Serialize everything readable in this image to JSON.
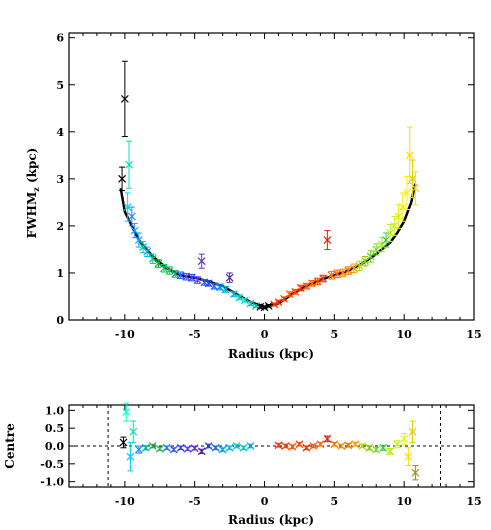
{
  "chart_data": [
    {
      "type": "scatter",
      "xlabel": "Radius (kpc)",
      "ylabel": "FWHM_z (kpc)",
      "ylabel_main": "FWHM",
      "ylabel_sub": "z",
      "ylabel_unit": " (kpc)",
      "xlim": [
        -14,
        15
      ],
      "ylim": [
        0,
        6.1
      ],
      "xticks": [
        "-10",
        "-5",
        "0",
        "5",
        "10",
        "15"
      ],
      "xtick_values": [
        -10,
        -5,
        0,
        5,
        10,
        15
      ],
      "yticks": [
        "0",
        "1",
        "2",
        "3",
        "4",
        "5",
        "6"
      ],
      "ytick_values": [
        0,
        1,
        2,
        3,
        4,
        5,
        6
      ],
      "trend": {
        "x": [
          -10.3,
          -10.0,
          -9.5,
          -9.0,
          -8.0,
          -7.0,
          -6.0,
          -5.0,
          -4.0,
          -3.0,
          -2.0,
          -1.0,
          0.0,
          1.0,
          2.0,
          3.0,
          4.0,
          5.0,
          6.0,
          7.0,
          8.0,
          9.0,
          9.5,
          10.0,
          10.5,
          10.8
        ],
        "y": [
          2.8,
          2.3,
          2.0,
          1.7,
          1.35,
          1.1,
          0.95,
          0.9,
          0.82,
          0.72,
          0.55,
          0.38,
          0.28,
          0.35,
          0.55,
          0.72,
          0.85,
          0.95,
          1.05,
          1.2,
          1.4,
          1.65,
          1.85,
          2.1,
          2.5,
          2.9
        ]
      },
      "points": {
        "x": [
          -10.2,
          -10.0,
          -9.8,
          -9.7,
          -9.5,
          -9.3,
          -9.0,
          -8.7,
          -8.4,
          -8.0,
          -7.6,
          -7.2,
          -6.8,
          -6.4,
          -6.0,
          -5.6,
          -5.2,
          -4.8,
          -4.5,
          -4.3,
          -4.0,
          -3.6,
          -3.2,
          -2.8,
          -2.5,
          -2.2,
          -1.8,
          -1.4,
          -1.0,
          -0.6,
          -0.3,
          0.0,
          0.3,
          0.7,
          1.0,
          1.4,
          1.8,
          2.2,
          2.6,
          3.0,
          3.4,
          3.8,
          4.2,
          4.5,
          4.8,
          5.2,
          5.6,
          6.0,
          6.4,
          6.8,
          7.2,
          7.6,
          8.0,
          8.4,
          8.7,
          9.0,
          9.3,
          9.6,
          9.9,
          10.2,
          10.4,
          10.6,
          10.8
        ],
        "y": [
          3.0,
          4.7,
          2.4,
          3.3,
          2.2,
          1.9,
          1.7,
          1.55,
          1.45,
          1.3,
          1.2,
          1.1,
          1.05,
          0.98,
          0.95,
          0.92,
          0.9,
          0.85,
          1.25,
          0.8,
          0.78,
          0.72,
          0.7,
          0.65,
          0.9,
          0.55,
          0.48,
          0.42,
          0.35,
          0.3,
          0.28,
          0.27,
          0.3,
          0.33,
          0.38,
          0.45,
          0.55,
          0.6,
          0.68,
          0.72,
          0.78,
          0.82,
          0.88,
          1.7,
          0.95,
          0.98,
          1.0,
          1.05,
          1.1,
          1.15,
          1.25,
          1.35,
          1.5,
          1.6,
          1.7,
          1.85,
          2.0,
          2.2,
          2.4,
          2.7,
          3.5,
          3.0,
          2.8
        ],
        "colors": [
          "#000000",
          "#000000",
          "#00ccff",
          "#00e0c0",
          "#2a7fff",
          "#1a9fff",
          "#00aaff",
          "#00c8a0",
          "#00b0ff",
          "#00cc88",
          "#22aa44",
          "#00cc66",
          "#33bb55",
          "#22aa88",
          "#2266ff",
          "#4455ff",
          "#3344ee",
          "#5544ff",
          "#6633cc",
          "#3355ff",
          "#2244ee",
          "#1166ff",
          "#0088ff",
          "#00aacc",
          "#5522aa",
          "#00bbee",
          "#00ccdd",
          "#00ddcc",
          "#00ccbb",
          "#00bbaa",
          "#000000",
          "#000000",
          "#000000",
          "#ff3300",
          "#ff2200",
          "#ee4400",
          "#ff5500",
          "#ff4400",
          "#ee3300",
          "#ff5511",
          "#ff6600",
          "#ee5500",
          "#ff3300",
          "#dd2200",
          "#ff7700",
          "#ff6611",
          "#ff8800",
          "#ee7700",
          "#ff9900",
          "#aadd00",
          "#88cc00",
          "#66cc22",
          "#77dd33",
          "#99ee11",
          "#44cc44",
          "#bbee00",
          "#ccee22",
          "#ddee00",
          "#eeee00",
          "#ffee00",
          "#ffdd00",
          "#ddcc00",
          "#eedd22"
        ],
        "err": [
          0.25,
          0.8,
          0.3,
          0.5,
          0.2,
          0.15,
          0.15,
          0.12,
          0.1,
          0.1,
          0.08,
          0.08,
          0.08,
          0.07,
          0.07,
          0.07,
          0.07,
          0.07,
          0.15,
          0.06,
          0.06,
          0.06,
          0.06,
          0.06,
          0.1,
          0.05,
          0.05,
          0.04,
          0.04,
          0.03,
          0.03,
          0.03,
          0.03,
          0.03,
          0.04,
          0.04,
          0.05,
          0.05,
          0.06,
          0.06,
          0.06,
          0.07,
          0.07,
          0.2,
          0.08,
          0.08,
          0.08,
          0.08,
          0.09,
          0.1,
          0.1,
          0.12,
          0.12,
          0.15,
          0.15,
          0.18,
          0.2,
          0.25,
          0.3,
          0.35,
          0.6,
          0.4,
          0.35
        ]
      }
    },
    {
      "type": "scatter",
      "xlabel": "Radius (kpc)",
      "ylabel": "Centre",
      "xlim": [
        -14,
        15
      ],
      "ylim": [
        -1.15,
        1.15
      ],
      "xticks": [
        "-10",
        "-5",
        "0",
        "5",
        "10",
        "15"
      ],
      "xtick_values": [
        -10,
        -5,
        0,
        5,
        10,
        15
      ],
      "yticks": [
        "1.0",
        "0.5",
        "0.0",
        "-0.5",
        "-1.0"
      ],
      "ytick_values": [
        1.0,
        0.5,
        0.0,
        -0.5,
        -1.0
      ],
      "hline": 0.0,
      "vlines": [
        -11.2,
        12.6
      ],
      "points": {
        "x": [
          -10.1,
          -9.9,
          -9.6,
          -9.4,
          -9.0,
          -8.5,
          -8.0,
          -7.5,
          -7.0,
          -6.5,
          -6.0,
          -5.5,
          -5.0,
          -4.5,
          -4.0,
          -3.5,
          -3.0,
          -2.5,
          -2.0,
          -1.5,
          -1.0,
          1.0,
          1.5,
          2.0,
          2.5,
          3.0,
          3.5,
          4.0,
          4.5,
          5.0,
          5.5,
          6.0,
          6.5,
          7.0,
          7.5,
          8.0,
          8.5,
          9.0,
          9.5,
          10.0,
          10.3,
          10.6,
          10.8
        ],
        "y": [
          0.1,
          0.95,
          -0.3,
          0.4,
          -0.1,
          -0.05,
          0.0,
          -0.08,
          -0.05,
          -0.1,
          -0.05,
          -0.08,
          -0.06,
          -0.15,
          0.0,
          -0.05,
          -0.1,
          -0.05,
          0.0,
          -0.05,
          0.0,
          0.02,
          0.0,
          -0.02,
          0.05,
          -0.05,
          0.0,
          0.05,
          0.2,
          0.05,
          0.0,
          0.02,
          0.05,
          0.0,
          -0.05,
          -0.1,
          -0.05,
          -0.15,
          0.05,
          0.2,
          -0.3,
          0.4,
          -0.75
        ],
        "colors": [
          "#000000",
          "#00ffcc",
          "#00ccff",
          "#00ddbb",
          "#2288ff",
          "#00bb88",
          "#22aa44",
          "#33bb55",
          "#2277ff",
          "#4455ff",
          "#3344ee",
          "#5544ff",
          "#6633cc",
          "#5522aa",
          "#2244ee",
          "#1166ff",
          "#00aacc",
          "#00bbee",
          "#00ccdd",
          "#00ccbb",
          "#00aaff",
          "#ff3300",
          "#ee4400",
          "#ff5500",
          "#ff4400",
          "#ee3300",
          "#ff5511",
          "#ff6600",
          "#dd2200",
          "#ff7700",
          "#ff8800",
          "#ee7700",
          "#ff9900",
          "#aadd00",
          "#88cc00",
          "#77dd33",
          "#44cc44",
          "#bbee00",
          "#ccee22",
          "#eeee00",
          "#ffdd00",
          "#ddcc00",
          "#aa8800"
        ],
        "err": [
          0.15,
          0.25,
          0.4,
          0.3,
          0.1,
          0.06,
          0.05,
          0.05,
          0.05,
          0.05,
          0.05,
          0.05,
          0.05,
          0.06,
          0.05,
          0.05,
          0.05,
          0.05,
          0.05,
          0.05,
          0.05,
          0.05,
          0.05,
          0.05,
          0.05,
          0.05,
          0.05,
          0.05,
          0.08,
          0.05,
          0.05,
          0.05,
          0.05,
          0.05,
          0.06,
          0.06,
          0.07,
          0.08,
          0.1,
          0.15,
          0.25,
          0.3,
          0.2
        ]
      }
    }
  ]
}
